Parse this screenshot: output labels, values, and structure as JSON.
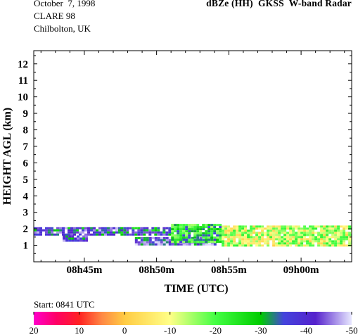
{
  "header": {
    "date": "October  7, 1998",
    "campaign": "CLARE 98",
    "location": "Chilbolton, UK",
    "instrument": "dBZe (HH)  GKSS  W-band Radar"
  },
  "chart_data": {
    "type": "heatmap",
    "title": "dBZe (HH)  GKSS  W-band Radar",
    "xlabel": "TIME (UTC)",
    "ylabel": "HEIGHT AGL (km)",
    "x_unit": "minutes after 08h00 UTC",
    "xlim": [
      41.5,
      63.5
    ],
    "ylim": [
      0,
      12.8
    ],
    "x_ticks": [
      {
        "value": 45,
        "label": "08h45m"
      },
      {
        "value": 50,
        "label": "08h50m"
      },
      {
        "value": 55,
        "label": "08h55m"
      },
      {
        "value": 60,
        "label": "09h00m"
      }
    ],
    "y_ticks": [
      1,
      2,
      3,
      4,
      5,
      6,
      7,
      8,
      9,
      10,
      11,
      12
    ],
    "colorbar": {
      "label": "Start: 0841 UTC",
      "ticks": [
        20,
        10,
        0,
        -10,
        -20,
        -30,
        -40,
        -50
      ],
      "range": [
        20,
        -50
      ],
      "stops": [
        {
          "value": 20,
          "color": "#ff00cc"
        },
        {
          "value": 15,
          "color": "#ff0066"
        },
        {
          "value": 10,
          "color": "#ff2222"
        },
        {
          "value": 5,
          "color": "#ff8844"
        },
        {
          "value": 0,
          "color": "#ffcc44"
        },
        {
          "value": -10,
          "color": "#ffff88"
        },
        {
          "value": -20,
          "color": "#44ff44"
        },
        {
          "value": -30,
          "color": "#00cc00"
        },
        {
          "value": -35,
          "color": "#4444dd"
        },
        {
          "value": -42,
          "color": "#5522cc"
        },
        {
          "value": -50,
          "color": "#e8e8ff"
        }
      ]
    },
    "echo_regions": [
      {
        "name": "low-level-cloud-west",
        "x": [
          41.5,
          47.5
        ],
        "y": [
          1.6,
          2.1
        ],
        "dbz": -38
      },
      {
        "name": "drizzle-patches-west",
        "x": [
          43.5,
          45.2
        ],
        "y": [
          1.3,
          1.6
        ],
        "dbz": -40
      },
      {
        "name": "low-level-cloud-central",
        "x": [
          47.5,
          51.0
        ],
        "y": [
          1.7,
          2.1
        ],
        "dbz": -35
      },
      {
        "name": "cloud-base-band-central",
        "x": [
          48.5,
          54.0
        ],
        "y": [
          1.0,
          1.5
        ],
        "dbz": -40
      },
      {
        "name": "transition-region",
        "x": [
          51.0,
          54.5
        ],
        "y": [
          1.2,
          2.3
        ],
        "dbz": -25
      },
      {
        "name": "drizzling-stratocumulus-east",
        "x": [
          54.5,
          63.5
        ],
        "y": [
          0.95,
          2.2
        ],
        "dbz": -12
      }
    ]
  }
}
